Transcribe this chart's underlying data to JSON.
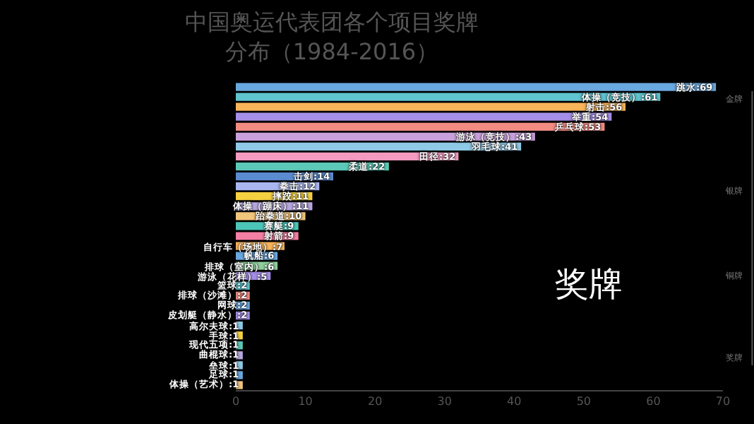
{
  "chart_data": {
    "type": "bar",
    "orientation": "horizontal",
    "title": "中国奥运代表团各个项目奖牌分布（1984-2016）",
    "categories": [
      null,
      null,
      null,
      null,
      null,
      null,
      null,
      null,
      null,
      null,
      null,
      null,
      null,
      null,
      null,
      null,
      null,
      null,
      null,
      null,
      null,
      null,
      null,
      null,
      null,
      null,
      null,
      null,
      null,
      null,
      null
    ],
    "values": [
      69,
      61,
      56,
      54,
      53,
      43,
      41,
      32,
      22,
      14,
      12,
      11,
      11,
      10,
      9,
      9,
      7,
      6,
      6,
      5,
      2,
      2,
      2,
      2,
      1,
      1,
      1,
      1,
      1,
      1,
      1
    ],
    "value_labels": [
      "跳水:69",
      "体操（竞技）:61",
      "射击:56",
      "举重:54",
      "乒乓球:53",
      "游泳（竞技）:43",
      "羽毛球:41",
      "田径:32",
      "柔道:22",
      "击剑:14",
      "拳击:12",
      "摔跤:11",
      "体操（蹦床）:11",
      "跆拳道:10",
      "赛艇:9",
      "射箭:9",
      "自行车（场地）:7",
      "帆船:6",
      "排球（室内）:6",
      "游泳（花样）:5",
      "篮球:2",
      "排球（沙滩）:2",
      "网球:2",
      "皮划艇（静水）:2",
      "高尔夫球:1",
      "手球:1",
      "现代五项:1",
      "曲棍球:1",
      "垒球:1",
      "足球:1",
      "体操（艺术）:1"
    ],
    "colors": [
      "#6aa8e0",
      "#5fc4cf",
      "#f9b55a",
      "#a68fe8",
      "#f28b82",
      "#c9a0dc",
      "#8ec9e6",
      "#f49ac1",
      "#5cc9b8",
      "#5b8bd0",
      "#a9b6ef",
      "#f5d142",
      "#b8a8e0",
      "#f2c57c",
      "#4cc6b8",
      "#f47fa4",
      "#f9b55a",
      "#6aa8e0",
      "#8fd19e",
      "#a68fe8",
      "#5fc4cf",
      "#f28b82",
      "#6aa8e0",
      "#a68fe8",
      "#8ec9e6",
      "#f5d142",
      "#5cc9b8",
      "#b8a8e0",
      "#8ec9e6",
      "#6aa8e0",
      "#f2c57c"
    ],
    "xlim": [
      0,
      70
    ],
    "xticks": [
      0,
      10,
      20,
      30,
      40,
      50,
      60,
      70
    ],
    "tick_labels": "x",
    "annotations": [
      "奖牌",
      "金牌",
      "银牌",
      "铜牌",
      "奖牌"
    ]
  }
}
